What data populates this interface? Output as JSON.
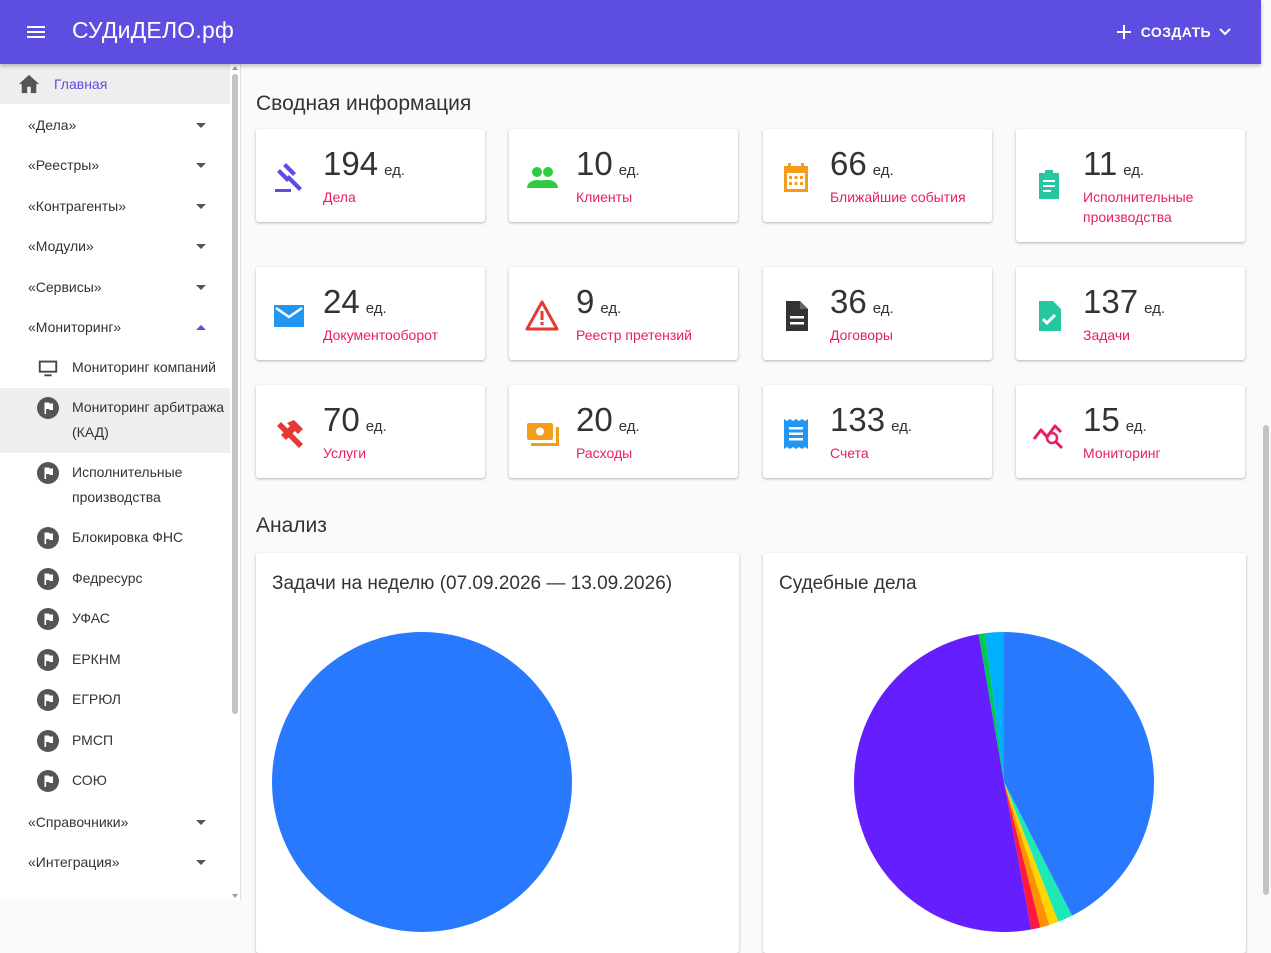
{
  "app": {
    "brand": "СУДиДЕЛО.рф",
    "create_label": "СОЗДАТЬ"
  },
  "sidebar": {
    "home": "Главная",
    "groups_top": [
      "«Дела»",
      "«Реестры»",
      "«Контрагенты»",
      "«Модули»",
      "«Сервисы»",
      "«Мониторинг»"
    ],
    "monitoring_items": [
      "Мониторинг компаний",
      "Мониторинг арбитража (КАД)",
      "Исполнительные производства",
      "Блокировка ФНС",
      "Федресурс",
      "УФАС",
      "ЕРКНМ",
      "ЕГРЮЛ",
      "РМСП",
      "СОЮ"
    ],
    "groups_bottom": [
      "«Справочники»",
      "«Интеграция»"
    ]
  },
  "summary": {
    "title": "Сводная информация",
    "unit": "ед.",
    "cards": [
      {
        "value": "194",
        "label": "Дела",
        "icon": "gavel-icon",
        "color": "#5d4de0"
      },
      {
        "value": "10",
        "label": "Клиенты",
        "icon": "people-icon",
        "color": "#2ecc40"
      },
      {
        "value": "66",
        "label": "Ближайшие события",
        "icon": "calendar-icon",
        "color": "#f59c1a"
      },
      {
        "value": "11",
        "label": "Исполнительные производства",
        "icon": "clipboard-icon",
        "color": "#26c6a0"
      },
      {
        "value": "24",
        "label": "Документооборот",
        "icon": "mail-icon",
        "color": "#2196f3"
      },
      {
        "value": "9",
        "label": "Реестр претензий",
        "icon": "warning-icon",
        "color": "#e53935"
      },
      {
        "value": "36",
        "label": "Договоры",
        "icon": "document-icon",
        "color": "#333333"
      },
      {
        "value": "137",
        "label": "Задачи",
        "icon": "task-file-icon",
        "color": "#26c6a0"
      },
      {
        "value": "70",
        "label": "Услуги",
        "icon": "tools-icon",
        "color": "#e53935"
      },
      {
        "value": "20",
        "label": "Расходы",
        "icon": "money-icon",
        "color": "#f59c1a"
      },
      {
        "value": "133",
        "label": "Счета",
        "icon": "receipt-icon",
        "color": "#2196f3"
      },
      {
        "value": "15",
        "label": "Мониторинг",
        "icon": "monitoring-icon",
        "color": "#e91e63"
      }
    ]
  },
  "analysis": {
    "title": "Анализ",
    "tasks_chart_title": "Задачи на неделю (07.09.2026 — 13.09.2026)",
    "cases_chart_title": "Судебные дела"
  },
  "chart_data": [
    {
      "type": "pie",
      "title": "Задачи на неделю (07.09.2026 — 13.09.2026)",
      "slices": [
        {
          "value": 100,
          "color": "#2979ff"
        }
      ]
    },
    {
      "type": "pie",
      "title": "Судебные дела",
      "slices": [
        {
          "value": 42.5,
          "color": "#2979ff"
        },
        {
          "value": 1.6,
          "color": "#1de9b6"
        },
        {
          "value": 1.0,
          "color": "#ffd600"
        },
        {
          "value": 1.0,
          "color": "#ff9100"
        },
        {
          "value": 1.0,
          "color": "#ff1744"
        },
        {
          "value": 50.2,
          "color": "#651fff"
        },
        {
          "value": 0.7,
          "color": "#00c853"
        },
        {
          "value": 2.0,
          "color": "#00b0ff"
        }
      ]
    }
  ]
}
